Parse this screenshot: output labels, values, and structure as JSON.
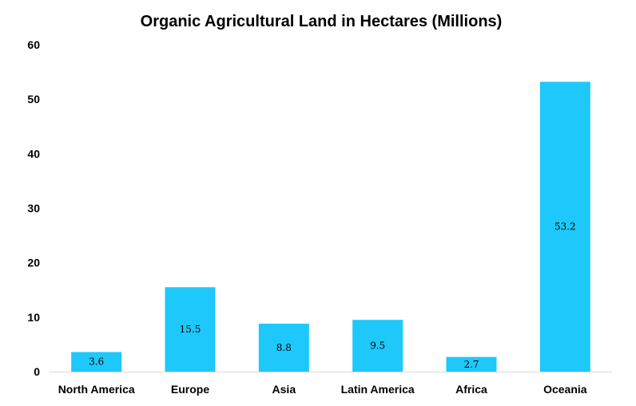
{
  "chart_data": {
    "type": "bar",
    "title": "Organic Agricultural Land in Hectares (Millions)",
    "xlabel": "",
    "ylabel": "",
    "categories": [
      "North America",
      "Europe",
      "Asia",
      "Latin America",
      "Africa",
      "Oceania"
    ],
    "values": [
      3.6,
      15.5,
      8.8,
      9.5,
      2.7,
      53.2
    ],
    "value_labels": [
      "3.6",
      "15.5",
      "8.8",
      "9.5",
      "2.7",
      "53.2"
    ],
    "ylim": [
      0,
      60
    ],
    "yticks": [
      0,
      10,
      20,
      30,
      40,
      50,
      60
    ],
    "grid": false,
    "legend": "none",
    "bar_color": "#1EC8FA",
    "axis_color": "#D9D9D9"
  }
}
